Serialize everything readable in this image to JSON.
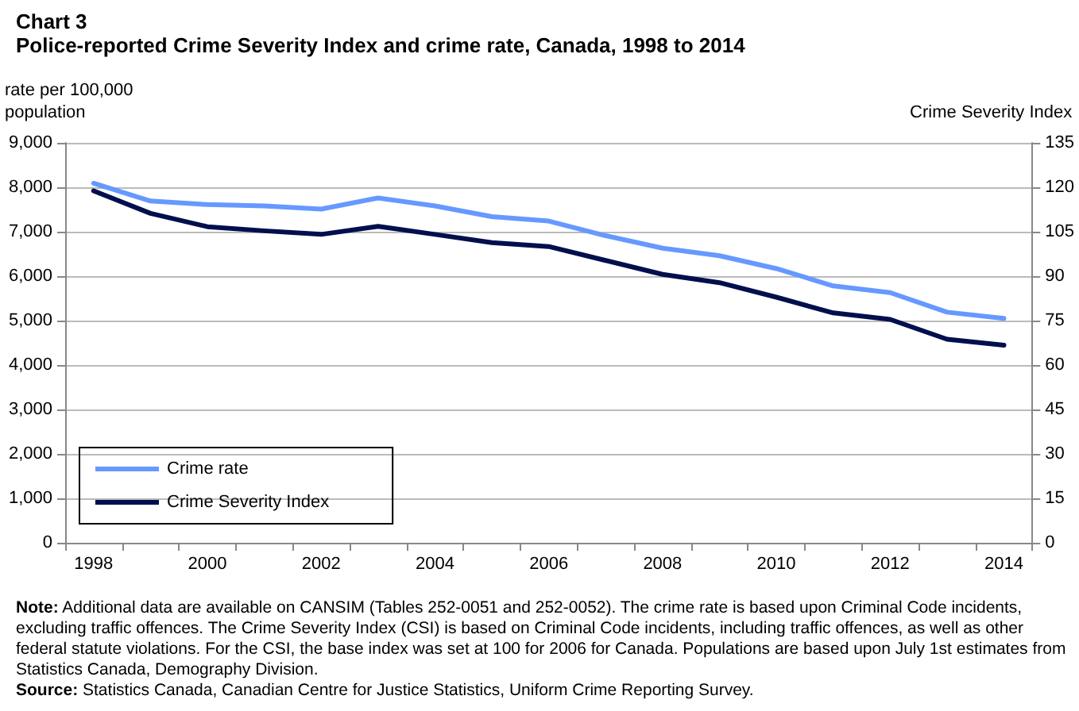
{
  "chart_data": {
    "type": "line",
    "title": "Chart 3",
    "subtitle": "Police-reported Crime Severity Index and crime rate, Canada, 1998 to 2014",
    "ylabel": "rate per 100,000\npopulation",
    "y2label": "Crime Severity Index",
    "categories": [
      "1998",
      null,
      "2000",
      null,
      "2002",
      null,
      "2004",
      null,
      "2006",
      null,
      "2008",
      null,
      "2010",
      null,
      "2012",
      null,
      "2014"
    ],
    "series": [
      {
        "name": "Crime rate",
        "color": "#6699ff",
        "values": [
          8090,
          7690,
          7610,
          7580,
          7510,
          7760,
          7580,
          7340,
          7240,
          6910,
          6630,
          6460,
          6170,
          5780,
          5630,
          5190,
          5050
        ]
      },
      {
        "name": "Crime Severity Index",
        "color": "#000f4d",
        "axis": "y2",
        "values": [
          118.8,
          111.2,
          106.7,
          105.3,
          104.1,
          106.8,
          104.1,
          101.3,
          100,
          95.3,
          90.6,
          87.8,
          82.9,
          77.6,
          75.4,
          68.7,
          66.7
        ]
      }
    ],
    "ylim": [
      0,
      9000
    ],
    "yticks": [
      0,
      {
        "value": 1000,
        "label": "1,000"
      },
      {
        "value": 2000,
        "label": "2,000"
      },
      {
        "value": 3000,
        "label": "3,000"
      },
      {
        "value": 4000,
        "label": "4,000"
      },
      {
        "value": 5000,
        "label": "5,000"
      },
      {
        "value": 6000,
        "label": "6,000"
      },
      {
        "value": 7000,
        "label": "7,000"
      },
      {
        "value": 8000,
        "label": "8,000"
      },
      {
        "value": 9000,
        "label": "9,000"
      }
    ],
    "y2lim": [
      0,
      135
    ],
    "y2ticks": [
      0,
      15,
      30,
      45,
      60,
      75,
      90,
      105,
      120,
      135
    ],
    "grid": "y",
    "legend": "bottom left",
    "marker": "none",
    "line_style": "solid",
    "annotations": [
      "Note: Additional data are available on CANSIM  (Tables 252-0051  and 252-0052).  The crime rate is based upon Criminal Code incidents, excluding traffic offences. The Crime Severity Index (CSI) is based on Criminal Code incidents, including traffic offences,  as well as other federal statute violations. For the CSI, the base index was set at 100 for 2006 for Canada. Populations are based upon July 1st  estimates from Statistics Canada, Demography Division.",
      "Source: Statistics Canada, Canadian Centre for Justice Statistics, Uniform Crime Reporting Survey."
    ]
  }
}
